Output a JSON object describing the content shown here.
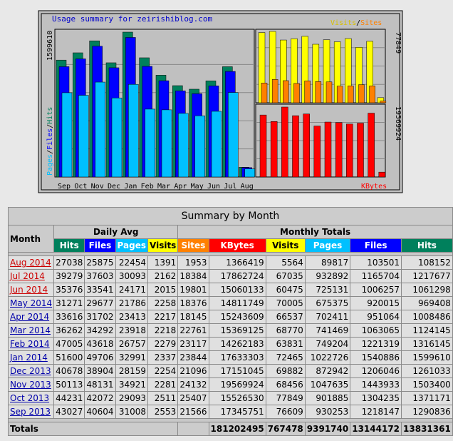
{
  "colors": {
    "hits": "#00805c",
    "files": "#0000ff",
    "pages": "#00c0ff",
    "visits": "#ffff00",
    "sites": "#ff8000",
    "kbytes": "#ff0000"
  },
  "chart_data": [
    {
      "type": "bar",
      "title": "Usage summary for zeirishiblog.com",
      "y_label_parts": [
        "Pages",
        "/",
        "Files",
        "/",
        "Hits"
      ],
      "y_max_label": "1599610",
      "categories": [
        "Sep",
        "Oct",
        "Nov",
        "Dec",
        "Jan",
        "Feb",
        "Mar",
        "Apr",
        "May",
        "Jun",
        "Jul",
        "Aug"
      ],
      "ylim": [
        0,
        1599610
      ],
      "series": [
        {
          "name": "Hits",
          "values": [
            1290836,
            1371171,
            1503400,
            1261033,
            1599610,
            1316145,
            1124145,
            1008486,
            969408,
            1061298,
            1217677,
            108152
          ]
        },
        {
          "name": "Files",
          "values": [
            1218147,
            1304235,
            1443933,
            1206046,
            1540886,
            1221319,
            1063065,
            951064,
            920015,
            1006257,
            1165704,
            103501
          ]
        },
        {
          "name": "Pages",
          "values": [
            930253,
            901885,
            1047635,
            872942,
            1022726,
            749204,
            741469,
            702411,
            675375,
            725131,
            932892,
            89817
          ]
        }
      ]
    },
    {
      "type": "bar",
      "legend_parts": [
        "Visits",
        "/",
        "Sites"
      ],
      "y_max_label": "77849",
      "ylim": [
        0,
        77849
      ],
      "series": [
        {
          "name": "Visits",
          "values": [
            76609,
            77849,
            68456,
            69882,
            72465,
            63831,
            68770,
            66537,
            70005,
            60475,
            67035,
            5564
          ]
        },
        {
          "name": "Sites",
          "values": [
            21566,
            25407,
            24132,
            21096,
            23844,
            23117,
            22761,
            18145,
            18376,
            19801,
            18384,
            1953
          ]
        }
      ]
    },
    {
      "type": "bar",
      "legend": "KBytes",
      "y_max_label": "19569924",
      "ylim": [
        0,
        19569924
      ],
      "series": [
        {
          "name": "KBytes",
          "values": [
            17345751,
            15526530,
            19569924,
            17151045,
            17633303,
            14262183,
            15369125,
            15243609,
            14811749,
            15060133,
            17862724,
            1366419
          ]
        }
      ]
    }
  ],
  "table": {
    "title": "Summary by Month",
    "month_header": "Month",
    "daily_avg_header": "Daily Avg",
    "monthly_totals_header": "Monthly Totals",
    "daily_cols": [
      "Hits",
      "Files",
      "Pages",
      "Visits"
    ],
    "monthly_cols": [
      "Sites",
      "KBytes",
      "Visits",
      "Pages",
      "Files",
      "Hits"
    ],
    "rows": [
      {
        "month": "Aug 2014",
        "d": [
          "27038",
          "25875",
          "22454",
          "1391"
        ],
        "m": [
          "1953",
          "1366419",
          "5564",
          "89817",
          "103501",
          "108152"
        ]
      },
      {
        "month": "Jul 2014",
        "d": [
          "39279",
          "37603",
          "30093",
          "2162"
        ],
        "m": [
          "18384",
          "17862724",
          "67035",
          "932892",
          "1165704",
          "1217677"
        ]
      },
      {
        "month": "Jun 2014",
        "d": [
          "35376",
          "33541",
          "24171",
          "2015"
        ],
        "m": [
          "19801",
          "15060133",
          "60475",
          "725131",
          "1006257",
          "1061298"
        ]
      },
      {
        "month": "May 2014",
        "d": [
          "31271",
          "29677",
          "21786",
          "2258"
        ],
        "m": [
          "18376",
          "14811749",
          "70005",
          "675375",
          "920015",
          "969408"
        ]
      },
      {
        "month": "Apr 2014",
        "d": [
          "33616",
          "31702",
          "23413",
          "2217"
        ],
        "m": [
          "18145",
          "15243609",
          "66537",
          "702411",
          "951064",
          "1008486"
        ]
      },
      {
        "month": "Mar 2014",
        "d": [
          "36262",
          "34292",
          "23918",
          "2218"
        ],
        "m": [
          "22761",
          "15369125",
          "68770",
          "741469",
          "1063065",
          "1124145"
        ]
      },
      {
        "month": "Feb 2014",
        "d": [
          "47005",
          "43618",
          "26757",
          "2279"
        ],
        "m": [
          "23117",
          "14262183",
          "63831",
          "749204",
          "1221319",
          "1316145"
        ]
      },
      {
        "month": "Jan 2014",
        "d": [
          "51600",
          "49706",
          "32991",
          "2337"
        ],
        "m": [
          "23844",
          "17633303",
          "72465",
          "1022726",
          "1540886",
          "1599610"
        ]
      },
      {
        "month": "Dec 2013",
        "d": [
          "40678",
          "38904",
          "28159",
          "2254"
        ],
        "m": [
          "21096",
          "17151045",
          "69882",
          "872942",
          "1206046",
          "1261033"
        ]
      },
      {
        "month": "Nov 2013",
        "d": [
          "50113",
          "48131",
          "34921",
          "2281"
        ],
        "m": [
          "24132",
          "19569924",
          "68456",
          "1047635",
          "1443933",
          "1503400"
        ]
      },
      {
        "month": "Oct 2013",
        "d": [
          "44231",
          "42072",
          "29093",
          "2511"
        ],
        "m": [
          "25407",
          "15526530",
          "77849",
          "901885",
          "1304235",
          "1371171"
        ]
      },
      {
        "month": "Sep 2013",
        "d": [
          "43027",
          "40604",
          "31008",
          "2553"
        ],
        "m": [
          "21566",
          "17345751",
          "76609",
          "930253",
          "1218147",
          "1290836"
        ]
      }
    ],
    "totals_label": "Totals",
    "totals": [
      "181202495",
      "767478",
      "9391740",
      "13144172",
      "13831361"
    ]
  }
}
